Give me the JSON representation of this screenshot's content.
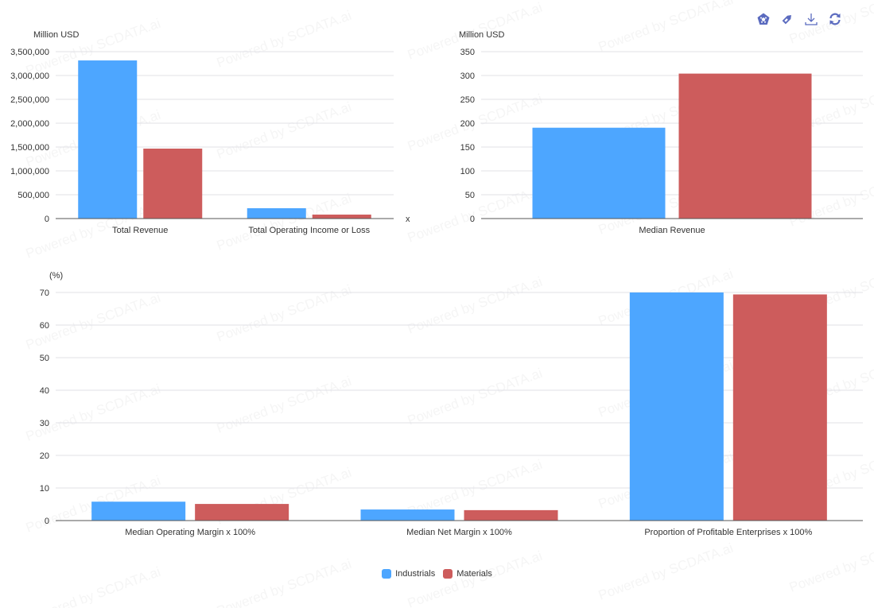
{
  "toolbar": {
    "icons": [
      "chart-type-icon",
      "tag-icon",
      "download-icon",
      "refresh-icon"
    ],
    "color": "#5b6bbf"
  },
  "watermark": "Powered by SCDATA.ai",
  "legend": [
    {
      "name": "Industrials",
      "color": "#4da6ff"
    },
    {
      "name": "Materials",
      "color": "#cd5c5c"
    }
  ],
  "chart_data": [
    {
      "type": "bar",
      "ylabel": "Million USD",
      "xlabel": "x",
      "categories": [
        "Total Revenue",
        "Total Operating Income or Loss"
      ],
      "series": [
        {
          "name": "Industrials",
          "values": [
            3316000,
            217000
          ]
        },
        {
          "name": "Materials",
          "values": [
            1467000,
            83000
          ]
        }
      ],
      "ylim": [
        0,
        3500000
      ],
      "yticks": [
        "0",
        "500,000",
        "1,000,000",
        "1,500,000",
        "2,000,000",
        "2,500,000",
        "3,000,000",
        "3,500,000"
      ],
      "grid": true
    },
    {
      "type": "bar",
      "ylabel": "Million USD",
      "categories": [
        "Median Revenue"
      ],
      "series": [
        {
          "name": "Industrials",
          "values": [
            190.5
          ]
        },
        {
          "name": "Materials",
          "values": [
            304
          ]
        }
      ],
      "ylim": [
        0,
        350
      ],
      "yticks": [
        "0",
        "50",
        "100",
        "150",
        "200",
        "250",
        "300",
        "350"
      ],
      "grid": true
    },
    {
      "type": "bar",
      "ylabel": "(%)",
      "categories": [
        "Median Operating Margin x 100%",
        "Median Net Margin x 100%",
        "Proportion of Profitable Enterprises x 100%"
      ],
      "series": [
        {
          "name": "Industrials",
          "values": [
            5.8,
            3.4,
            70
          ]
        },
        {
          "name": "Materials",
          "values": [
            5.1,
            3.2,
            69.4
          ]
        }
      ],
      "ylim": [
        0,
        70
      ],
      "yticks": [
        "0",
        "10",
        "20",
        "30",
        "40",
        "50",
        "60",
        "70"
      ],
      "grid": true,
      "legend": "bottom"
    }
  ]
}
